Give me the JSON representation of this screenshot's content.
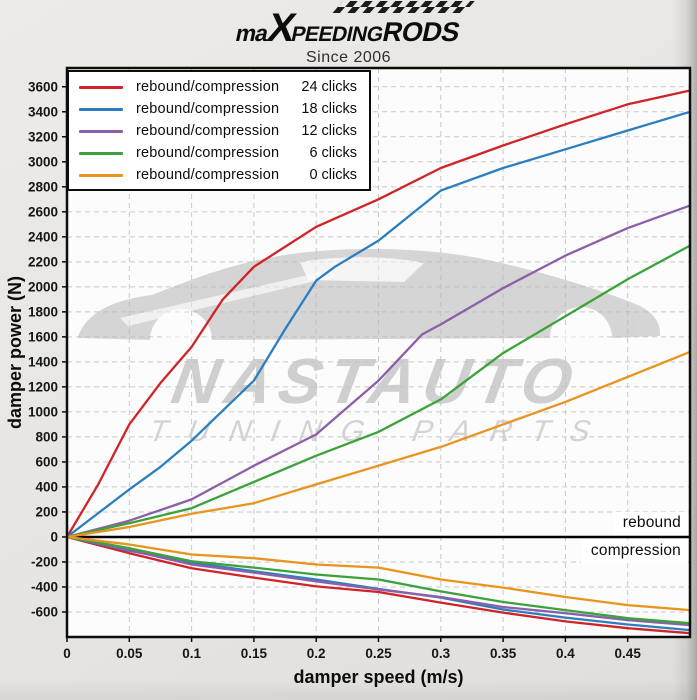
{
  "header": {
    "logo_part1": "ma",
    "logo_part2": "X",
    "logo_part3": "PEEDING",
    "logo_part4": "RODS",
    "tagline": "Since 2006"
  },
  "watermark": {
    "line1": "NASTAUTO",
    "line2": "TUNING PARTS"
  },
  "chart_data": {
    "type": "line",
    "title": "",
    "xlabel": "damper speed (m/s)",
    "ylabel": "damper power (N)",
    "xlim": [
      0,
      0.5
    ],
    "ylim": [
      -800,
      3750
    ],
    "grid": true,
    "legend_position": "top-left",
    "zone_labels": {
      "positive": "rebound",
      "negative": "compression"
    },
    "xtick_values": [
      0,
      0.05,
      0.1,
      0.15,
      0.2,
      0.25,
      0.3,
      0.35,
      0.4,
      0.45
    ],
    "xtick_labels": [
      "0",
      "0.05",
      "0.1",
      "0.15",
      "0.2",
      "0.25",
      "0.3",
      "0.35",
      "0.4",
      "0.45"
    ],
    "ytick_values": [
      -600,
      -400,
      -200,
      0,
      200,
      400,
      600,
      800,
      1000,
      1200,
      1400,
      1600,
      1800,
      2000,
      2200,
      2400,
      2600,
      2800,
      3000,
      3200,
      3400,
      3600
    ],
    "series": [
      {
        "name": "rebound/compression",
        "clicks": "24 clicks",
        "color": "#cf2428",
        "rebound": [
          [
            0,
            0
          ],
          [
            0.025,
            420
          ],
          [
            0.05,
            900
          ],
          [
            0.075,
            1230
          ],
          [
            0.1,
            1520
          ],
          [
            0.125,
            1900
          ],
          [
            0.15,
            2160
          ],
          [
            0.2,
            2480
          ],
          [
            0.25,
            2700
          ],
          [
            0.3,
            2950
          ],
          [
            0.35,
            3130
          ],
          [
            0.4,
            3300
          ],
          [
            0.45,
            3460
          ],
          [
            0.5,
            3570
          ]
        ],
        "compression": [
          [
            0,
            0
          ],
          [
            0.05,
            -130
          ],
          [
            0.1,
            -250
          ],
          [
            0.15,
            -325
          ],
          [
            0.2,
            -395
          ],
          [
            0.25,
            -440
          ],
          [
            0.3,
            -525
          ],
          [
            0.35,
            -605
          ],
          [
            0.4,
            -675
          ],
          [
            0.45,
            -730
          ],
          [
            0.5,
            -770
          ]
        ]
      },
      {
        "name": "rebound/compression",
        "clicks": "18 clicks",
        "color": "#2b7fc0",
        "rebound": [
          [
            0,
            0
          ],
          [
            0.05,
            380
          ],
          [
            0.075,
            560
          ],
          [
            0.1,
            770
          ],
          [
            0.15,
            1250
          ],
          [
            0.175,
            1660
          ],
          [
            0.2,
            2050
          ],
          [
            0.215,
            2160
          ],
          [
            0.25,
            2370
          ],
          [
            0.3,
            2770
          ],
          [
            0.35,
            2950
          ],
          [
            0.4,
            3100
          ],
          [
            0.45,
            3250
          ],
          [
            0.5,
            3400
          ]
        ],
        "compression": [
          [
            0,
            0
          ],
          [
            0.05,
            -110
          ],
          [
            0.1,
            -205
          ],
          [
            0.15,
            -275
          ],
          [
            0.2,
            -340
          ],
          [
            0.25,
            -415
          ],
          [
            0.3,
            -485
          ],
          [
            0.35,
            -580
          ],
          [
            0.4,
            -645
          ],
          [
            0.45,
            -700
          ],
          [
            0.5,
            -745
          ]
        ]
      },
      {
        "name": "rebound/compression",
        "clicks": "12 clicks",
        "color": "#8c5fa8",
        "rebound": [
          [
            0,
            0
          ],
          [
            0.05,
            130
          ],
          [
            0.1,
            300
          ],
          [
            0.15,
            570
          ],
          [
            0.2,
            820
          ],
          [
            0.25,
            1250
          ],
          [
            0.285,
            1620
          ],
          [
            0.3,
            1700
          ],
          [
            0.35,
            1990
          ],
          [
            0.4,
            2250
          ],
          [
            0.45,
            2470
          ],
          [
            0.5,
            2650
          ]
        ],
        "compression": [
          [
            0,
            0
          ],
          [
            0.05,
            -105
          ],
          [
            0.1,
            -220
          ],
          [
            0.15,
            -285
          ],
          [
            0.2,
            -355
          ],
          [
            0.25,
            -420
          ],
          [
            0.3,
            -480
          ],
          [
            0.35,
            -560
          ],
          [
            0.4,
            -610
          ],
          [
            0.45,
            -665
          ],
          [
            0.5,
            -705
          ]
        ]
      },
      {
        "name": "rebound/compression",
        "clicks": "6 clicks",
        "color": "#3ca23c",
        "rebound": [
          [
            0,
            0
          ],
          [
            0.05,
            110
          ],
          [
            0.1,
            230
          ],
          [
            0.15,
            440
          ],
          [
            0.2,
            650
          ],
          [
            0.25,
            840
          ],
          [
            0.3,
            1100
          ],
          [
            0.35,
            1470
          ],
          [
            0.4,
            1765
          ],
          [
            0.45,
            2060
          ],
          [
            0.5,
            2330
          ]
        ],
        "compression": [
          [
            0,
            0
          ],
          [
            0.05,
            -90
          ],
          [
            0.1,
            -195
          ],
          [
            0.15,
            -245
          ],
          [
            0.2,
            -300
          ],
          [
            0.25,
            -340
          ],
          [
            0.3,
            -435
          ],
          [
            0.35,
            -520
          ],
          [
            0.4,
            -585
          ],
          [
            0.45,
            -650
          ],
          [
            0.5,
            -690
          ]
        ]
      },
      {
        "name": "rebound/compression",
        "clicks": "0 clicks",
        "color": "#e8941e",
        "rebound": [
          [
            0,
            0
          ],
          [
            0.05,
            80
          ],
          [
            0.1,
            185
          ],
          [
            0.15,
            270
          ],
          [
            0.2,
            420
          ],
          [
            0.25,
            570
          ],
          [
            0.3,
            720
          ],
          [
            0.35,
            900
          ],
          [
            0.4,
            1080
          ],
          [
            0.45,
            1280
          ],
          [
            0.5,
            1480
          ]
        ],
        "compression": [
          [
            0,
            0
          ],
          [
            0.05,
            -60
          ],
          [
            0.1,
            -140
          ],
          [
            0.15,
            -170
          ],
          [
            0.2,
            -220
          ],
          [
            0.25,
            -245
          ],
          [
            0.3,
            -340
          ],
          [
            0.35,
            -405
          ],
          [
            0.4,
            -480
          ],
          [
            0.45,
            -545
          ],
          [
            0.5,
            -585
          ]
        ]
      }
    ]
  }
}
